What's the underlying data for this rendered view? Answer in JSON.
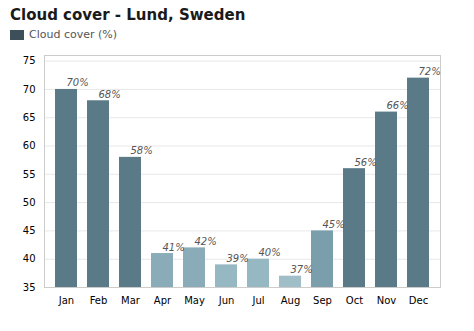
{
  "chart_data": {
    "type": "bar",
    "title": "Cloud cover - Lund, Sweden",
    "categories": [
      "Jan",
      "Feb",
      "Mar",
      "Apr",
      "May",
      "Jun",
      "Jul",
      "Aug",
      "Sep",
      "Oct",
      "Nov",
      "Dec"
    ],
    "series": [
      {
        "name": "Cloud cover (%)",
        "color": "#3d4f58",
        "values": [
          70,
          68,
          58,
          41,
          42,
          39,
          40,
          37,
          45,
          56,
          66,
          72
        ],
        "value_labels": [
          "70%",
          "68%",
          "58%",
          "41%",
          "42%",
          "39%",
          "40%",
          "37%",
          "45%",
          "56%",
          "66%",
          "72%"
        ],
        "colors": [
          "#5a7a88",
          "#5a7a88",
          "#5a7a88",
          "#8aacb8",
          "#8aacb8",
          "#96b8c2",
          "#96b8c2",
          "#a0bec8",
          "#7a9eac",
          "#5a7a88",
          "#5a7a88",
          "#5a7a88"
        ]
      }
    ],
    "ylim": [
      35,
      76
    ],
    "yticks": [
      35,
      40,
      45,
      50,
      55,
      60,
      65,
      70,
      75
    ],
    "grid": true,
    "legend": "upper left",
    "data_labels": true
  }
}
